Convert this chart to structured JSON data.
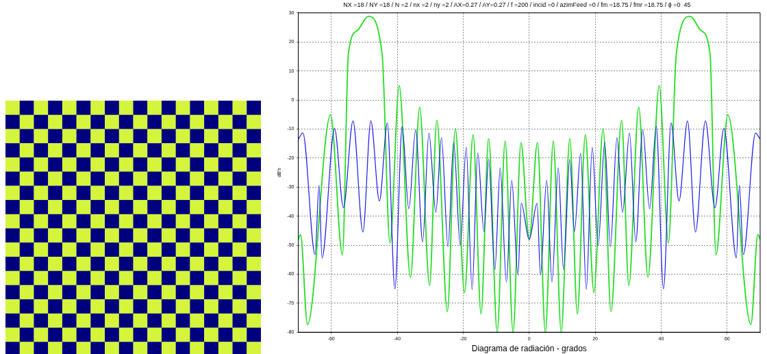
{
  "chart_data": {
    "type": "line",
    "title": "NX =18 / NY =18 / N =2 / nx =2 / ny =2 / AX=0.27 / AY=0.27 / f =200 / incid =0 / azimFeed =0 / fm =18.75 / fmr =18.75 / ϕ =0  45",
    "xlabel": "Diagrama de radiación - grados",
    "ylabel": "dB's",
    "series": [
      {
        "color": "#22dd22",
        "x": [
          -70,
          -69.3,
          -67.2,
          -60.2,
          -56.6,
          -54.8,
          -52,
          -48.8,
          -44.6,
          -42.2,
          -39.4,
          -36,
          -33.2,
          -30.2,
          -28,
          -24.8,
          -22.4,
          -19.6,
          -17,
          -14.6,
          -12.3,
          -9.7,
          -7.3,
          -4.9,
          -2.5,
          0,
          2.5,
          4.9,
          7.3,
          9.7,
          12.3,
          14.6,
          17,
          19.6,
          22.4,
          24.8,
          28,
          30.2,
          33.2,
          36,
          39.4,
          42.2,
          44.6,
          48.8,
          52,
          54.8,
          56.6,
          60.2,
          67.2,
          69.3,
          70
        ],
        "values": [
          -48,
          -46.4,
          -77.3,
          -5.1,
          -53.3,
          16,
          24,
          28.8,
          16,
          -49.3,
          5,
          -61.1,
          -2.5,
          -63.9,
          -7,
          -72.9,
          -9.8,
          -66.3,
          -12,
          -73.7,
          -13.3,
          -80,
          -14.1,
          -80,
          -14.7,
          -47.8,
          -14.7,
          -80,
          -14.1,
          -80,
          -13.3,
          -73.7,
          -12,
          -66.3,
          -9.8,
          -72.9,
          -7,
          -63.9,
          -2.5,
          -61.1,
          5,
          -49.3,
          16,
          28.8,
          24,
          16,
          -53.3,
          -5.1,
          -77.3,
          -46.4,
          -48
        ]
      },
      {
        "color": "#1a1aee",
        "x": [
          -70,
          -68.6,
          -64.9,
          -63.7,
          -62.8,
          -59,
          -56.3,
          -53.4,
          -50.4,
          -48,
          -45.4,
          -43,
          -40.7,
          -38.5,
          -36.5,
          -34.4,
          -32.3,
          -30.4,
          -28.3,
          -26.6,
          -24.6,
          -22.9,
          -20.9,
          -19.1,
          -17.3,
          -15.6,
          -13.7,
          -12.3,
          -10.4,
          -8.8,
          -6.9,
          -5.3,
          -3.4,
          -2.4,
          0,
          2.4,
          3.4,
          5.3,
          6.9,
          8.8,
          10.4,
          12.3,
          13.7,
          15.6,
          17.3,
          19.1,
          20.9,
          22.9,
          24.6,
          26.6,
          28.3,
          30.4,
          32.3,
          34.4,
          36.5,
          38.5,
          40.7,
          43,
          45.4,
          48,
          50.4,
          53.4,
          56.3,
          59,
          62.8,
          63.7,
          64.9,
          68.6,
          70
        ],
        "values": [
          -13.5,
          -11.4,
          -53.3,
          -29.3,
          -54.4,
          -9.8,
          -37.1,
          -7.2,
          -45.5,
          -7.2,
          -34.8,
          -7.9,
          -65.1,
          -9.1,
          -37.5,
          -10.2,
          -48.9,
          -11.4,
          -38.7,
          -13,
          -50.5,
          -14.5,
          -50.1,
          -16.3,
          -65.3,
          -18.3,
          -45.4,
          -20.4,
          -58.4,
          -23.4,
          -62.7,
          -27.7,
          -60.3,
          -35.6,
          -48.1,
          -35.6,
          -60.3,
          -27.7,
          -62.7,
          -23.4,
          -58.4,
          -20.4,
          -45.4,
          -18.3,
          -65.3,
          -16.3,
          -50.1,
          -14.5,
          -50.5,
          -13,
          -38.7,
          -11.4,
          -48.9,
          -10.2,
          -37.5,
          -9.1,
          -65.1,
          -7.9,
          -34.8,
          -7.2,
          -45.5,
          -7.2,
          -37.1,
          -9.8,
          -54.4,
          -29.3,
          -53.3,
          -11.4,
          -13.5
        ]
      }
    ],
    "xlim": [
      -70,
      70
    ],
    "xticks": [
      -60,
      -40,
      -20,
      0,
      20,
      40,
      60
    ],
    "ylim": [
      -80,
      30
    ],
    "yticks": [
      -80,
      -70,
      -60,
      -50,
      -40,
      -30,
      -20,
      -10,
      0,
      10,
      20,
      30
    ],
    "grid": true,
    "legend": false,
    "marker": "none",
    "line_style": "solid"
  }
}
